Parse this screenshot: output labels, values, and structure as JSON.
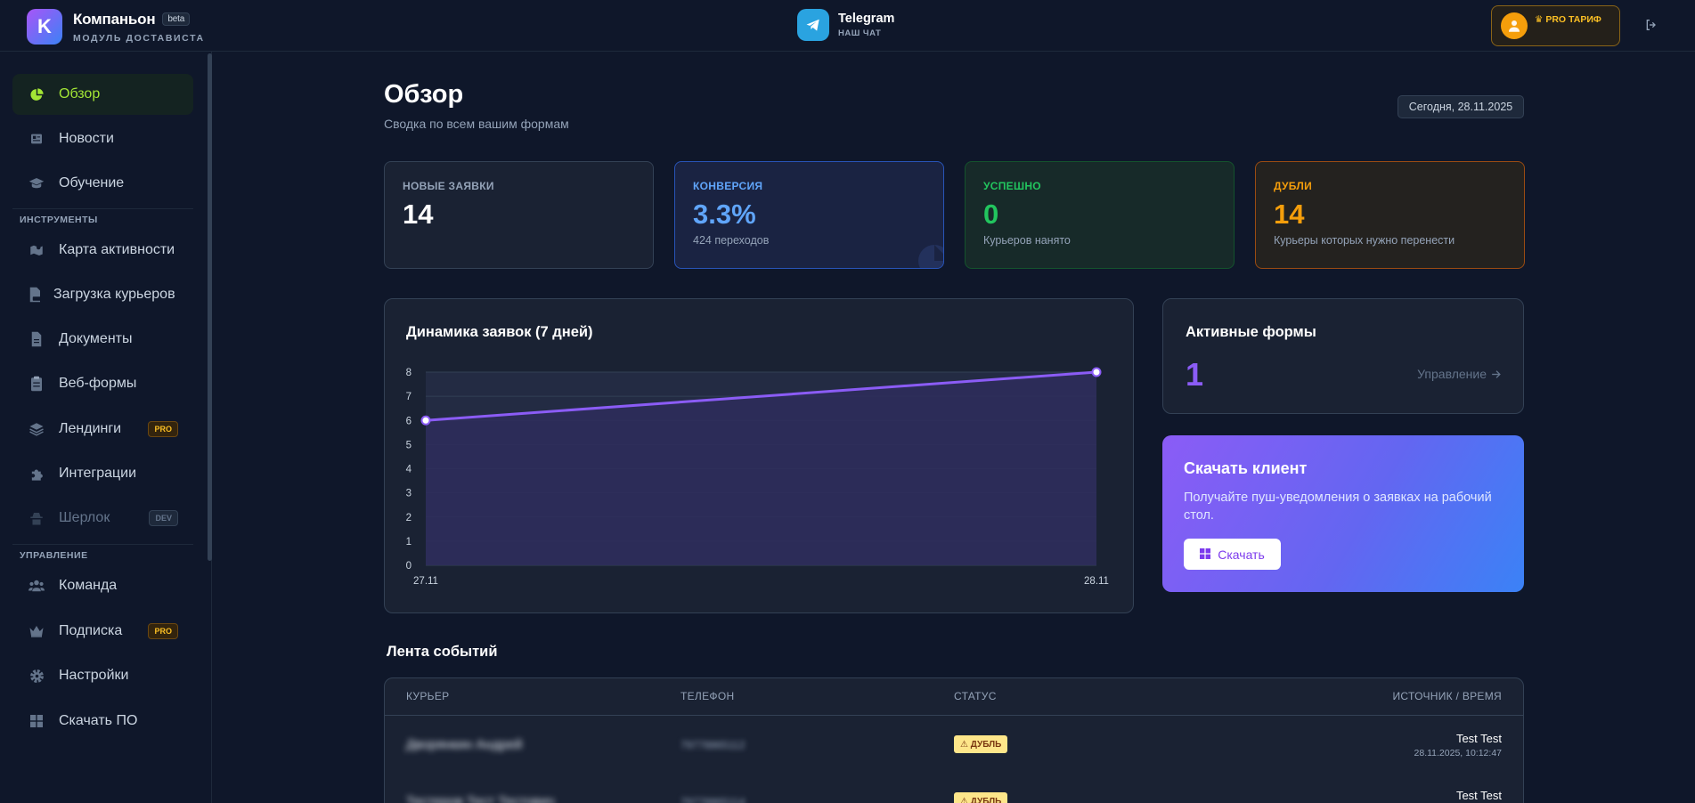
{
  "header": {
    "brand_initial": "K",
    "brand_title": "Компаньон",
    "beta_label": "beta",
    "brand_sub": "МОДУЛЬ ДОСТАВИСТА",
    "telegram_title": "Telegram",
    "telegram_sub": "НАШ ЧАТ",
    "pro_label": "♛ PRO ТАРИФ"
  },
  "sidebar": {
    "items": [
      {
        "label": "Обзор",
        "icon": "pie-chart-icon"
      },
      {
        "label": "Новости",
        "icon": "newspaper-icon"
      },
      {
        "label": "Обучение",
        "icon": "graduation-cap-icon"
      },
      {
        "label": "Карта активности",
        "icon": "map-icon"
      },
      {
        "label": "Загрузка курьеров",
        "icon": "csv-file-icon"
      },
      {
        "label": "Документы",
        "icon": "document-icon"
      },
      {
        "label": "Веб-формы",
        "icon": "clipboard-icon"
      },
      {
        "label": "Лендинги",
        "icon": "layers-icon",
        "tag": "PRO"
      },
      {
        "label": "Интеграции",
        "icon": "puzzle-icon"
      },
      {
        "label": "Шерлок",
        "icon": "detective-icon",
        "tag": "DEV"
      },
      {
        "label": "Команда",
        "icon": "users-icon"
      },
      {
        "label": "Подписка",
        "icon": "crown-icon",
        "tag": "PRO"
      },
      {
        "label": "Настройки",
        "icon": "gear-icon"
      },
      {
        "label": "Скачать ПО",
        "icon": "windows-icon"
      }
    ],
    "section_tools": "ИНСТРУМЕНТЫ",
    "section_manage": "УПРАВЛЕНИЕ"
  },
  "main": {
    "title": "Обзор",
    "subtitle": "Сводка по всем вашим формам",
    "date": "Сегодня, 28.11.2025",
    "stats": [
      {
        "label": "НОВЫЕ ЗАЯВКИ",
        "value": "14",
        "note": ""
      },
      {
        "label": "КОНВЕРСИЯ",
        "value": "3.3%",
        "note": "424 переходов"
      },
      {
        "label": "УСПЕШНО",
        "value": "0",
        "note": "Курьеров нанято"
      },
      {
        "label": "ДУБЛИ",
        "value": "14",
        "note": "Курьеры которых нужно перенести"
      }
    ],
    "active_forms": {
      "title": "Активные формы",
      "count": "1",
      "link": "Управление"
    },
    "download": {
      "title": "Скачать клиент",
      "text": "Получайте пуш-уведомления о заявках на рабочий стол.",
      "button": "Скачать"
    },
    "feed": {
      "title": "Лента событий",
      "columns": [
        "КУРЬЕР",
        "ТЕЛЕФОН",
        "СТАТУС",
        "ИСТОЧНИК / ВРЕМЯ"
      ],
      "rows": [
        {
          "name": "Дворянкин Андрей",
          "phone": "79778865112",
          "status": "⚠ ДУБЛЬ",
          "source": "Test Test",
          "time": "28.11.2025, 10:12:47"
        },
        {
          "name": "Тестеров Тест Тестович",
          "phone": "79778865114",
          "status": "⚠ ДУБЛЬ",
          "source": "Test Test",
          "time": ""
        }
      ]
    }
  },
  "chart_data": {
    "type": "area",
    "title": "Динамика заявок (7 дней)",
    "categories": [
      "27.11",
      "28.11"
    ],
    "series": [
      {
        "values": [
          6,
          8
        ]
      }
    ],
    "ylim": [
      0,
      8
    ],
    "yticks": [
      "0",
      "1",
      "2",
      "3",
      "4",
      "5",
      "6",
      "7",
      "8"
    ],
    "grid": true,
    "colors": {
      "line": "#8b5cf6",
      "fill": "#2e2d5c"
    }
  }
}
